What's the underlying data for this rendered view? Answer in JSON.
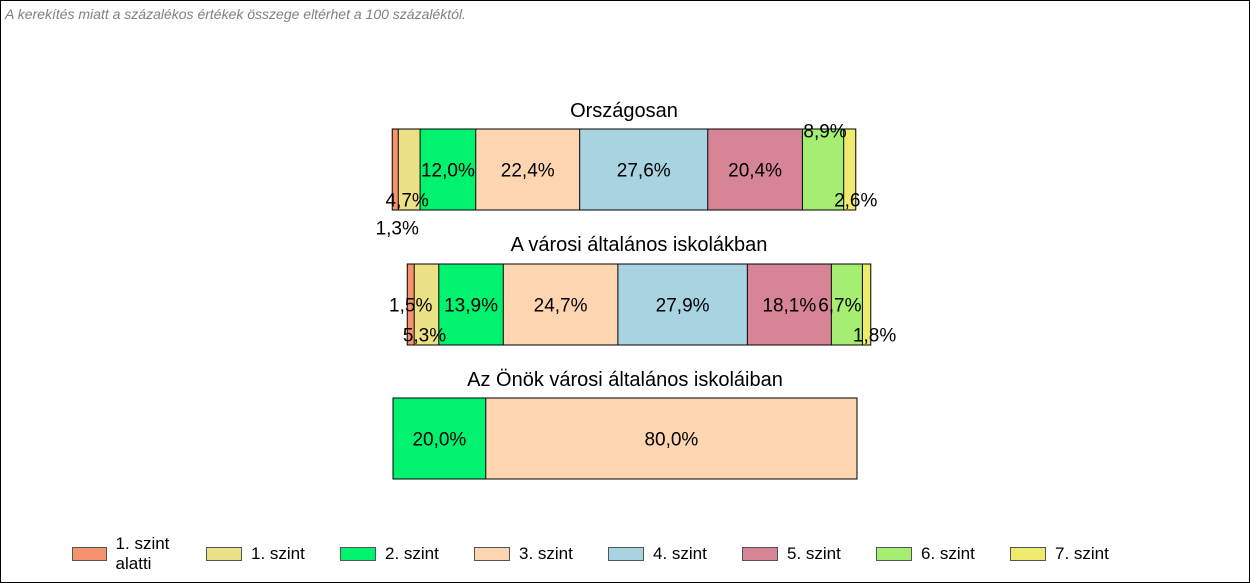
{
  "note": "A kerekítés miatt a  százalékos értékek összege eltérhet a 100 százaléktól.",
  "chart_data": {
    "type": "bar",
    "orientation": "horizontal-stacked",
    "levels": [
      "1. szint alatti",
      "1. szint",
      "2. szint",
      "3. szint",
      "4. szint",
      "5. szint",
      "6. szint",
      "7. szint"
    ],
    "colors": [
      "#f4936e",
      "#ece187",
      "#00f26f",
      "#fed5b1",
      "#a8d3e1",
      "#d68496",
      "#a6ee71",
      "#efeb6f"
    ],
    "groups": [
      {
        "title": "Országosan",
        "values": [
          1.3,
          4.7,
          12.0,
          22.4,
          27.6,
          20.4,
          8.9,
          2.6
        ],
        "labels": [
          "1,3%",
          "4,7%",
          "12,0%",
          "22,4%",
          "27,6%",
          "20,4%",
          "8,9%",
          "2,6%"
        ]
      },
      {
        "title": "A városi általános iskolákban",
        "values": [
          1.5,
          5.3,
          13.9,
          24.7,
          27.9,
          18.1,
          6.7,
          1.8
        ],
        "labels": [
          "1,5%",
          "5,3%",
          "13,9%",
          "24,7%",
          "27,9%",
          "18,1%",
          "6,7%",
          "1,8%"
        ]
      },
      {
        "title": "Az Önök városi általános iskoláiban",
        "values": [
          0,
          0,
          20.0,
          80.0,
          0,
          0,
          0,
          0
        ],
        "labels": [
          "",
          "",
          "20,0%",
          "80,0%",
          "",
          "",
          "",
          ""
        ]
      }
    ],
    "legend": "bottom"
  }
}
